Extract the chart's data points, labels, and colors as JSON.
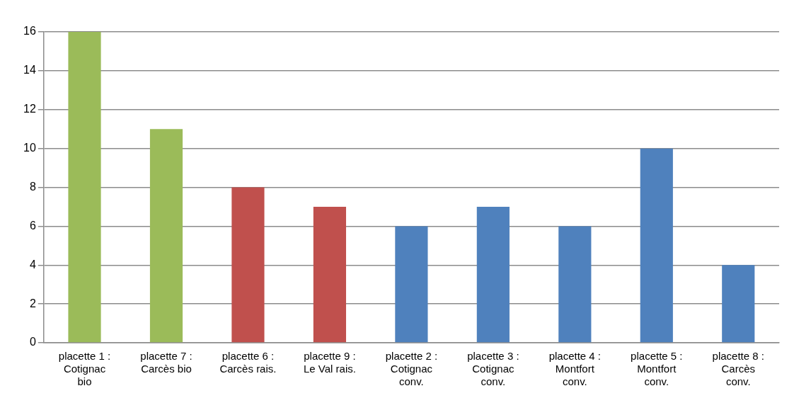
{
  "chart_data": {
    "type": "bar",
    "categories": [
      "placette 1 : Cotignac bio",
      "placette 7 : Carcès bio",
      "placette 6 : Carcès rais.",
      "placette 9 : Le Val rais.",
      "placette 2 : Cotignac conv.",
      "placette 3 : Cotignac conv.",
      "placette 4 : Montfort conv.",
      "placette 5 : Montfort conv.",
      "placette 8 : Carcès conv."
    ],
    "values": [
      16,
      11,
      8,
      7,
      6,
      7,
      6,
      10,
      4
    ],
    "colors": [
      "#9bbb59",
      "#9bbb59",
      "#c0504d",
      "#c0504d",
      "#4f81bd",
      "#4f81bd",
      "#4f81bd",
      "#4f81bd",
      "#4f81bd"
    ],
    "ylim": [
      0,
      16
    ],
    "yticks": [
      0,
      2,
      4,
      6,
      8,
      10,
      12,
      14,
      16
    ],
    "grid": "y",
    "legend": false
  }
}
